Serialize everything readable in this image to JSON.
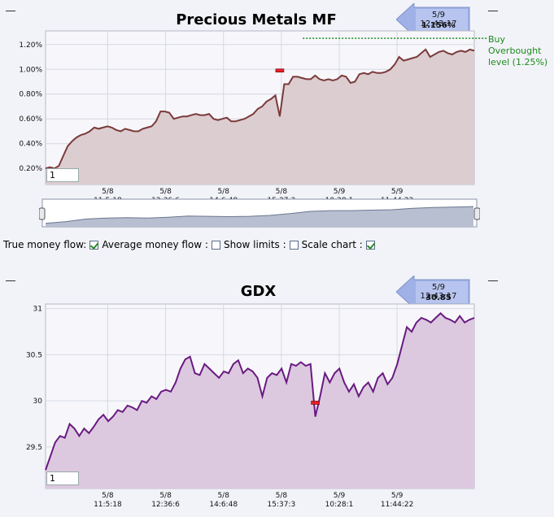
{
  "chart_data": [
    {
      "type": "area",
      "title": "Precious Metals MF",
      "callout": {
        "time": "5/9 12:43:17",
        "value": "1.156%"
      },
      "y_ticks": [
        "1.20%",
        "1.00%",
        "0.80%",
        "0.60%",
        "0.40%",
        "0.20%"
      ],
      "y_values": [
        1.2,
        1.0,
        0.8,
        0.6,
        0.4,
        0.2
      ],
      "ylim": [
        0.07,
        1.31
      ],
      "x_ticks": [
        {
          "date": "5/8",
          "time": "11:5:18"
        },
        {
          "date": "5/8",
          "time": "12:36:6"
        },
        {
          "date": "5/8",
          "time": "14:6:48"
        },
        {
          "date": "5/8",
          "time": "15:37:3"
        },
        {
          "date": "5/9",
          "time": "10:28:1"
        },
        {
          "date": "5/9",
          "time": "11:44:22"
        }
      ],
      "series": [
        {
          "values": [
            0.2,
            0.21,
            0.2,
            0.22,
            0.3,
            0.38,
            0.42,
            0.45,
            0.47,
            0.48,
            0.5,
            0.53,
            0.52,
            0.53,
            0.54,
            0.53,
            0.51,
            0.5,
            0.52,
            0.51,
            0.5,
            0.5,
            0.52,
            0.53,
            0.54,
            0.58,
            0.66,
            0.66,
            0.65,
            0.6,
            0.61,
            0.62,
            0.62,
            0.63,
            0.64,
            0.63,
            0.63,
            0.64,
            0.6,
            0.59,
            0.6,
            0.61,
            0.58,
            0.58,
            0.59,
            0.6,
            0.62,
            0.64,
            0.68,
            0.7,
            0.74,
            0.76,
            0.79,
            0.62,
            0.88,
            0.88,
            0.94,
            0.94,
            0.93,
            0.92,
            0.92,
            0.95,
            0.92,
            0.91,
            0.92,
            0.91,
            0.92,
            0.95,
            0.94,
            0.89,
            0.9,
            0.96,
            0.97,
            0.96,
            0.98,
            0.97,
            0.97,
            0.98,
            1.0,
            1.04,
            1.1,
            1.07,
            1.08,
            1.09,
            1.1,
            1.13,
            1.16,
            1.1,
            1.12,
            1.14,
            1.15,
            1.13,
            1.12,
            1.14,
            1.15,
            1.14,
            1.16,
            1.15
          ],
          "color": "#7b3a3a",
          "fill": "#dccdd0"
        }
      ],
      "marker": {
        "index": 53,
        "value": 0.99
      },
      "reference_line": {
        "value": 1.25,
        "label": [
          "Buy",
          "Overbought",
          "level (1.25%)"
        ],
        "color": "#1c8a1c"
      },
      "input_value": "1"
    },
    {
      "type": "area",
      "title": "GDX",
      "callout": {
        "time": "5/9 12:43:17",
        "value": "30.85"
      },
      "y_ticks": [
        "31",
        "30.5",
        "30",
        "29.5"
      ],
      "y_values": [
        31,
        30.5,
        30,
        29.5
      ],
      "ylim": [
        29.05,
        31.05
      ],
      "x_ticks": [
        {
          "date": "5/8",
          "time": "11:5:18"
        },
        {
          "date": "5/8",
          "time": "12:36:6"
        },
        {
          "date": "5/8",
          "time": "14:6:48"
        },
        {
          "date": "5/8",
          "time": "15:37:3"
        },
        {
          "date": "5/9",
          "time": "10:28:1"
        },
        {
          "date": "5/9",
          "time": "11:44:22"
        }
      ],
      "series": [
        {
          "values": [
            29.25,
            29.4,
            29.55,
            29.62,
            29.6,
            29.75,
            29.7,
            29.62,
            29.7,
            29.65,
            29.72,
            29.8,
            29.85,
            29.78,
            29.83,
            29.9,
            29.88,
            29.95,
            29.93,
            29.9,
            30.0,
            29.98,
            30.05,
            30.02,
            30.1,
            30.12,
            30.1,
            30.2,
            30.35,
            30.45,
            30.48,
            30.3,
            30.28,
            30.4,
            30.35,
            30.3,
            30.25,
            30.32,
            30.3,
            30.4,
            30.44,
            30.3,
            30.35,
            30.32,
            30.25,
            30.05,
            30.25,
            30.3,
            30.28,
            30.35,
            30.2,
            30.4,
            30.38,
            30.42,
            30.38,
            30.4,
            29.83,
            30.05,
            30.3,
            30.2,
            30.3,
            30.35,
            30.2,
            30.1,
            30.18,
            30.05,
            30.15,
            30.2,
            30.1,
            30.25,
            30.3,
            30.18,
            30.25,
            30.4,
            30.6,
            30.8,
            30.75,
            30.85,
            30.9,
            30.88,
            30.85,
            30.9,
            30.95,
            30.9,
            30.88,
            30.85,
            30.92,
            30.85,
            30.88,
            30.9
          ],
          "color": "#6a1a80",
          "fill": "#dcc9e0"
        }
      ],
      "marker": {
        "index": 56,
        "value": 29.98
      },
      "input_value": "1"
    }
  ],
  "controls": {
    "true_money_flow": "True money flow:",
    "average_money_flow": "Average money flow :",
    "show_limits": "Show limits :",
    "scale_chart": "Scale chart :"
  },
  "overview_values": [
    0.2,
    0.3,
    0.45,
    0.5,
    0.52,
    0.5,
    0.55,
    0.62,
    0.6,
    0.58,
    0.6,
    0.65,
    0.75,
    0.88,
    0.92,
    0.92,
    0.95,
    0.97,
    1.05,
    1.1,
    1.12,
    1.15
  ]
}
